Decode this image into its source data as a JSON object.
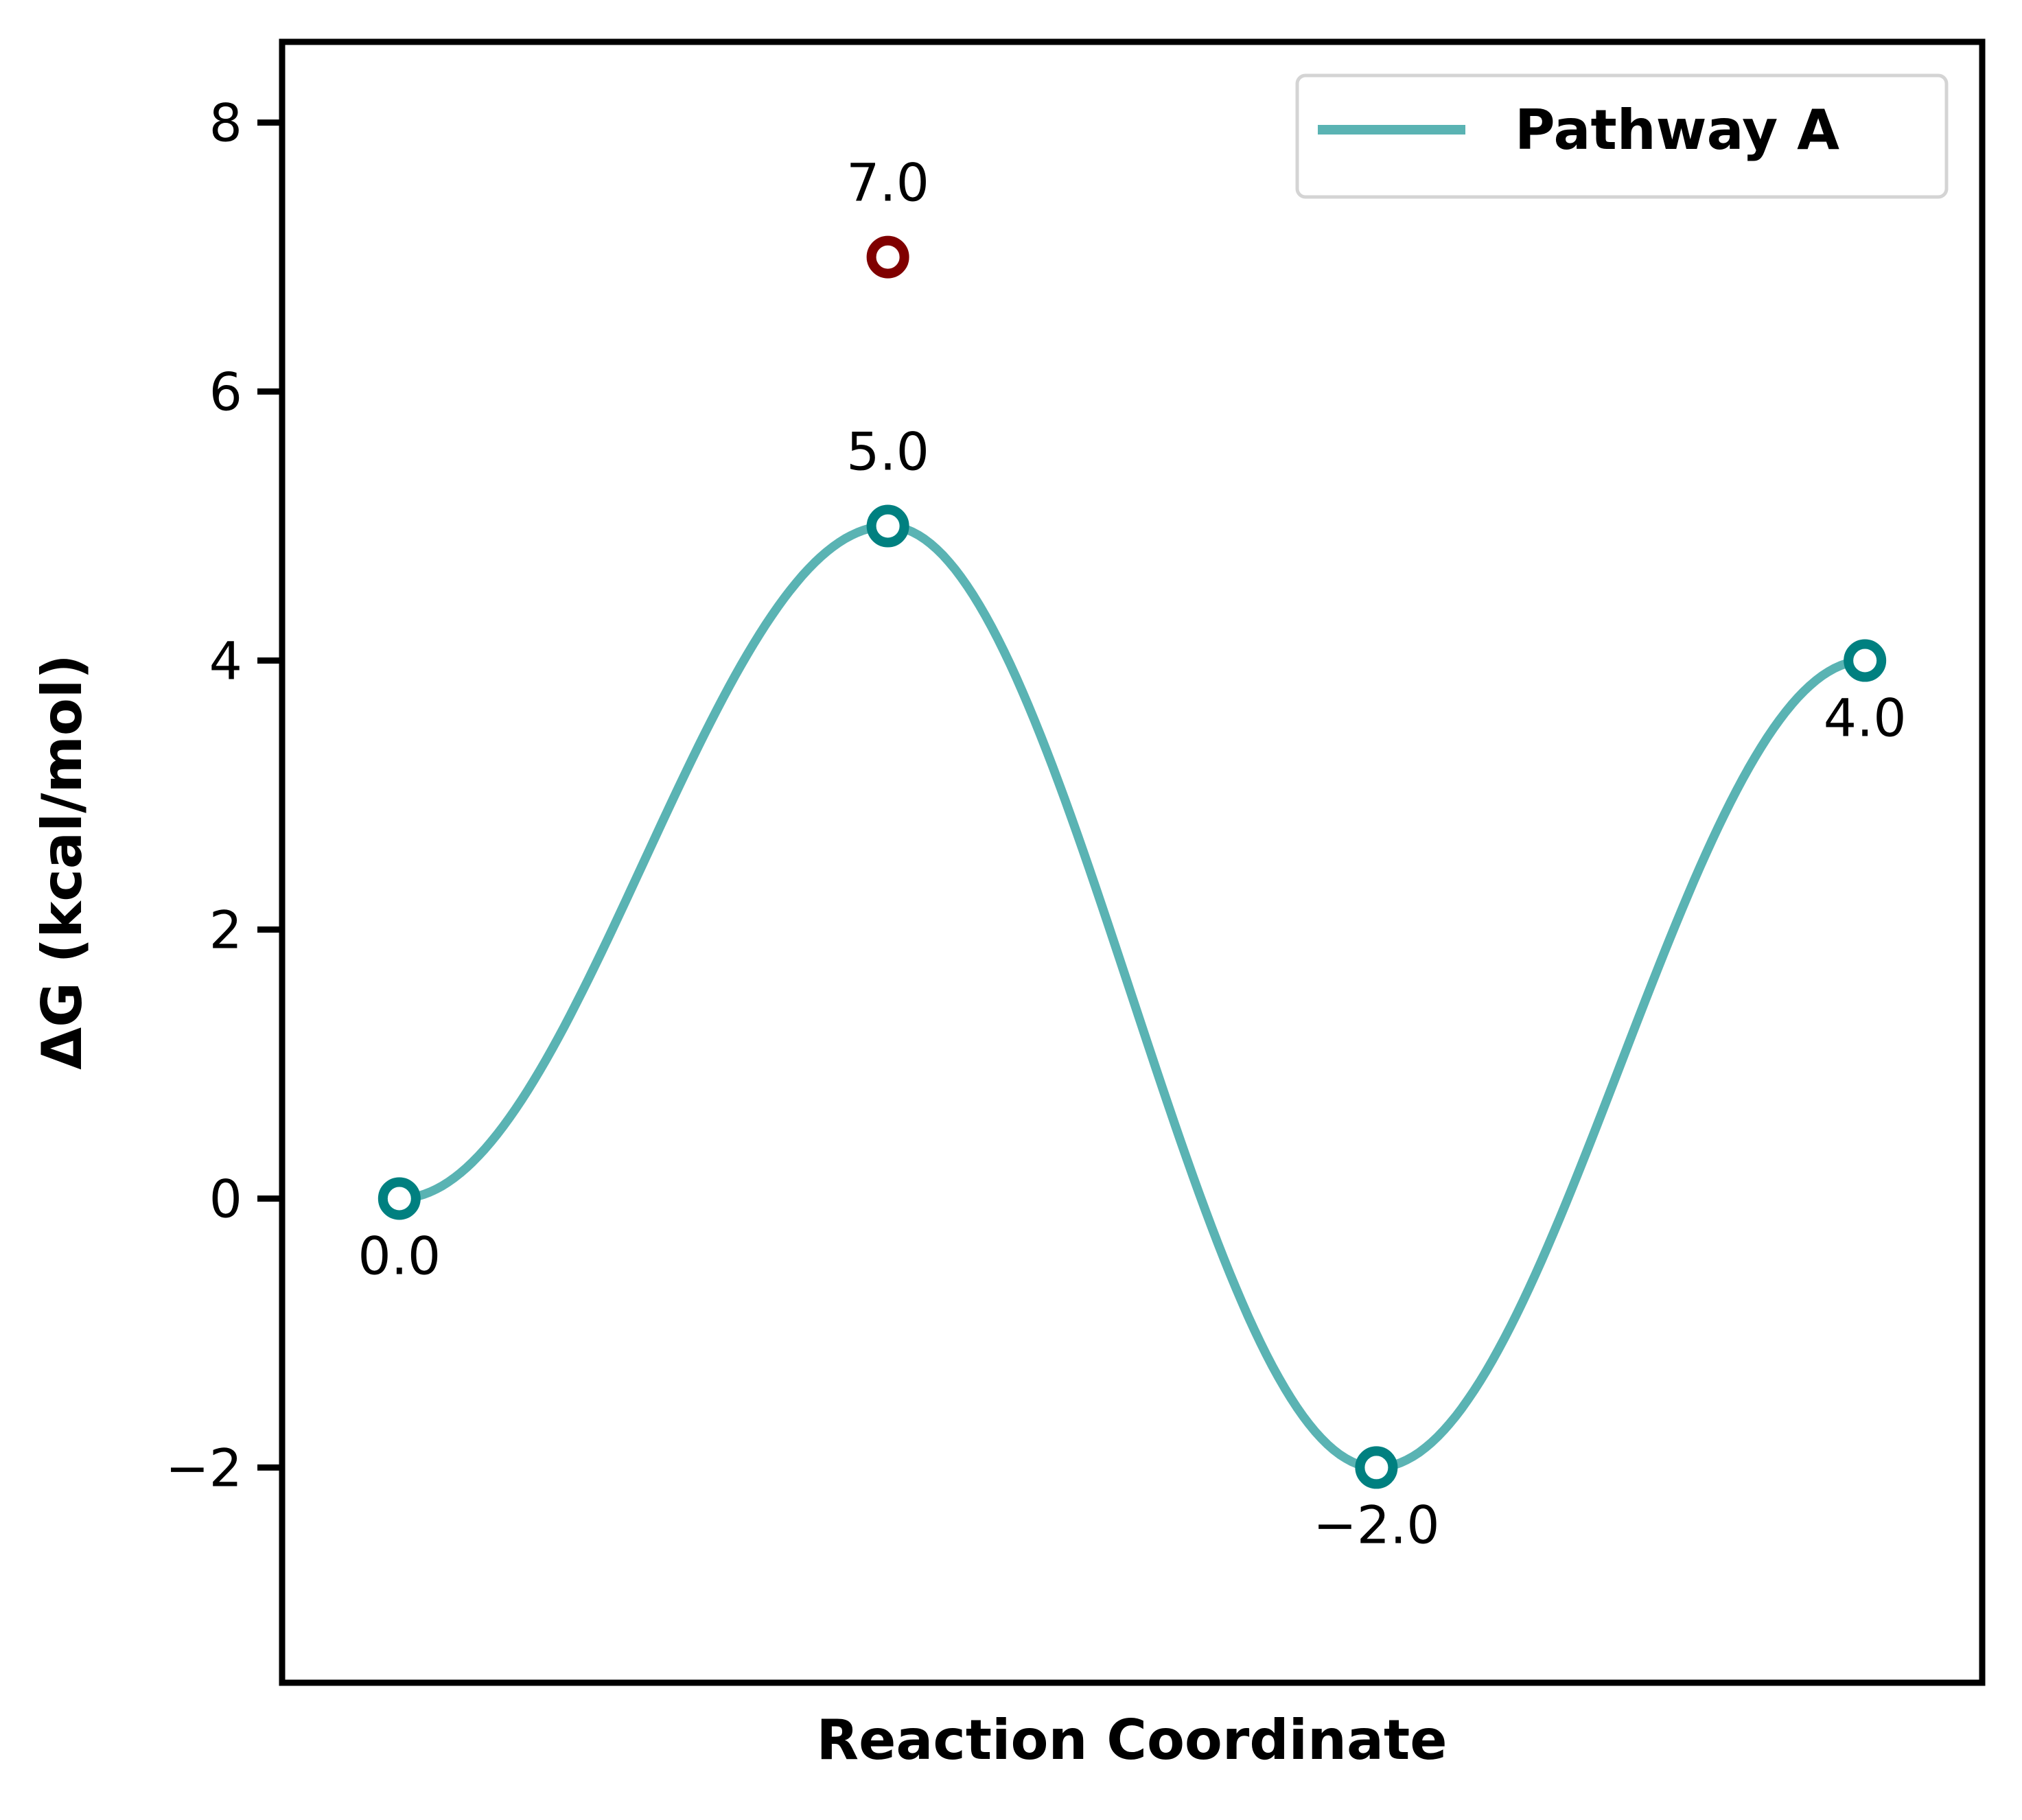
{
  "chart_data": {
    "type": "line",
    "title": "",
    "xlabel": "Reaction Coordinate",
    "ylabel": "ΔG (kcal/mol)",
    "ylim": [
      -3.6,
      8.6
    ],
    "xlim": [
      -0.24,
      3.24
    ],
    "yticks": [
      -2,
      0,
      2,
      4,
      6,
      8
    ],
    "ytick_labels": [
      "−2",
      "0",
      "2",
      "4",
      "6",
      "8"
    ],
    "grid": false,
    "legend_position": "top-right",
    "series": [
      {
        "name": "Pathway A",
        "color": "#5ab3b3",
        "marker_color": "#008080",
        "x": [
          0,
          1,
          2,
          3
        ],
        "y": [
          0.0,
          5.0,
          -2.0,
          4.0
        ],
        "labels": [
          "0.0",
          "5.0",
          "−2.0",
          "4.0"
        ],
        "label_side": [
          "below",
          "above",
          "below",
          "below"
        ]
      }
    ],
    "extra_points": [
      {
        "x": 1,
        "y": 7.0,
        "label": "7.0",
        "label_side": "above",
        "color": "#800000"
      }
    ]
  }
}
